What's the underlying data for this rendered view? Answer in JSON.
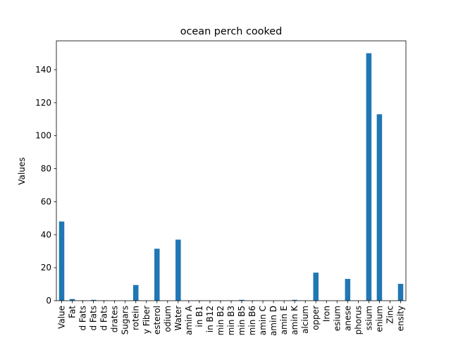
{
  "chart_data": {
    "type": "bar",
    "title": "ocean perch cooked",
    "xlabel": "",
    "ylabel": "Values",
    "ylim": [
      0,
      157.5
    ],
    "yticks": [
      0,
      20,
      40,
      60,
      80,
      100,
      120,
      140
    ],
    "grid": false,
    "legend": "none",
    "bar_color": "#1f77b4",
    "categories": [
      "Value",
      "Fat",
      "d Fats",
      "d Fats",
      "d Fats",
      "drates",
      "Sugars",
      "rotein",
      "y Fiber",
      "esterol",
      "odium",
      "Water",
      "amin A",
      "in B1",
      "in B12",
      "min B2",
      "min B3",
      "min B5",
      "min B6",
      "amin C",
      "amin D",
      "amin E",
      "amin K",
      "alcium",
      "opper",
      "Iron",
      "esium",
      "anese",
      "phorus",
      "ssium",
      "enium",
      "Zinc",
      "ensity"
    ],
    "values": [
      48,
      1,
      0.2,
      0.5,
      0.2,
      0,
      0,
      9.5,
      0,
      31.5,
      0,
      37,
      0,
      0.1,
      0,
      0.1,
      0.1,
      0.5,
      0.1,
      0,
      0,
      0,
      0.5,
      0.1,
      17,
      0,
      0,
      13.2,
      0,
      150,
      113,
      0,
      10.2
    ]
  }
}
